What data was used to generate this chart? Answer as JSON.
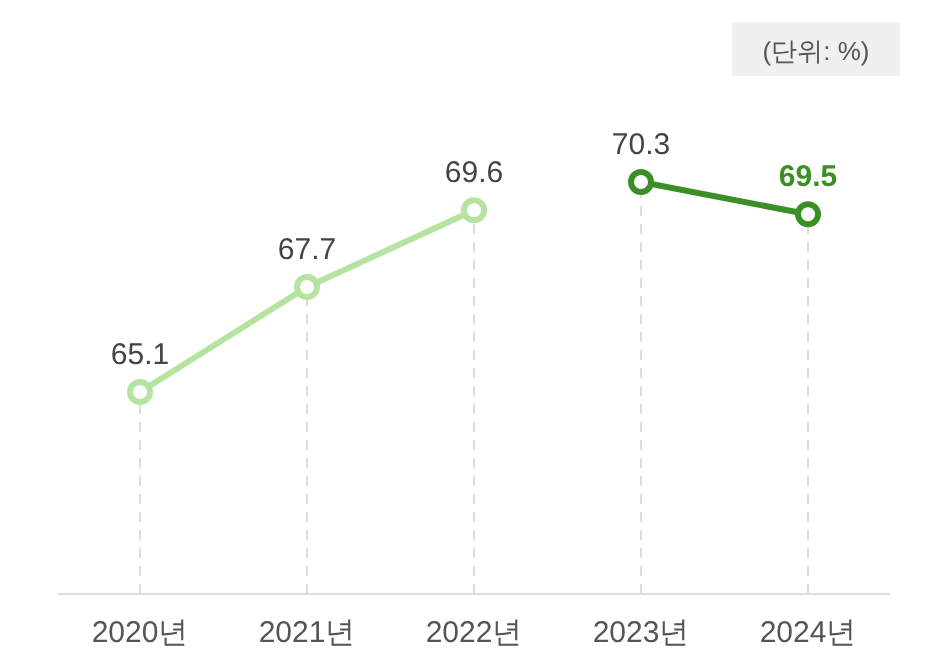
{
  "chart_data": {
    "type": "line",
    "categories": [
      "2020년",
      "2021년",
      "2022년",
      "2023년",
      "2024년"
    ],
    "series": [
      {
        "color": "#b5e3a0",
        "values": [
          65.1,
          67.7,
          69.6,
          null,
          null
        ]
      },
      {
        "color": "#3a8f25",
        "values": [
          null,
          null,
          null,
          70.3,
          69.5
        ]
      }
    ],
    "data_labels": true,
    "grid": "x",
    "marker": "circle",
    "line_style": "solid",
    "annotations": [
      "(단위: %)"
    ]
  }
}
